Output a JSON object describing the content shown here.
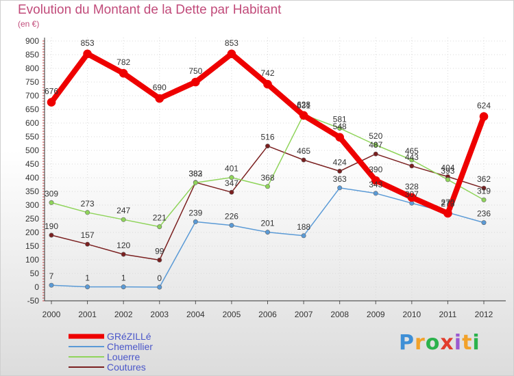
{
  "chart_data": {
    "type": "line",
    "title": "Evolution du Montant de la Dette par Habitant",
    "subtitle": "(en €)",
    "xlabel": "",
    "ylabel": "",
    "ylim": [
      -50,
      900
    ],
    "yticks": [
      -50,
      0,
      50,
      100,
      150,
      200,
      250,
      300,
      350,
      400,
      450,
      500,
      550,
      600,
      650,
      700,
      750,
      800,
      850,
      900
    ],
    "x": [
      "2000",
      "2001",
      "2002",
      "2003",
      "2004",
      "2005",
      "2006",
      "2007",
      "2008",
      "2009",
      "2010",
      "2011",
      "2012"
    ],
    "grid": true,
    "legend_position": "bottom-left",
    "series": [
      {
        "name": "GRéZILLé",
        "color": "#ee0000",
        "width": 8,
        "values": [
          676,
          853,
          782,
          690,
          750,
          853,
          742,
          628,
          548,
          390,
          328,
          270,
          624
        ],
        "labels": [
          "676",
          "853",
          "782",
          "690",
          "750",
          "853",
          "742",
          "628",
          "548",
          "390",
          "328",
          "270",
          "624"
        ]
      },
      {
        "name": "Chemellier",
        "color": "#5a9ad6",
        "width": 1.5,
        "values": [
          7,
          1,
          1,
          0,
          239,
          226,
          201,
          188,
          363,
          343,
          307,
          273,
          236
        ],
        "labels": [
          "7",
          "1",
          "1",
          "0",
          "239",
          "226",
          "201",
          "188",
          "363",
          "343",
          "307",
          "273",
          "236"
        ]
      },
      {
        "name": "Louerre",
        "color": "#8fd45a",
        "width": 1.5,
        "values": [
          309,
          273,
          247,
          221,
          382,
          401,
          368,
          631,
          581,
          520,
          465,
          393,
          319
        ],
        "labels": [
          "309",
          "273",
          "247",
          "221",
          "382",
          "401",
          "368",
          "631",
          "581",
          "520",
          "465",
          "393",
          "319"
        ]
      },
      {
        "name": "Coutures",
        "color": "#7a1f1f",
        "width": 1.5,
        "values": [
          190,
          157,
          120,
          99,
          383,
          347,
          516,
          465,
          424,
          487,
          443,
          404,
          362
        ],
        "labels": [
          "190",
          "157",
          "120",
          "99",
          "383",
          "347",
          "516",
          "465",
          "424",
          "487",
          "443",
          "404",
          "362"
        ]
      }
    ]
  },
  "brand": {
    "letters": [
      "P",
      "r",
      "o",
      "x",
      "i",
      "t",
      "i"
    ],
    "colors": [
      "#3e8fd6",
      "#f2a22a",
      "#2bb24c",
      "#e23c2c",
      "#9b59d0",
      "#f2a22a",
      "#2bb24c"
    ]
  }
}
